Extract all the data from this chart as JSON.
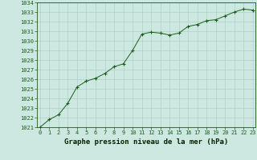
{
  "x": [
    0,
    1,
    2,
    3,
    4,
    5,
    6,
    7,
    8,
    9,
    10,
    11,
    12,
    13,
    14,
    15,
    16,
    17,
    18,
    19,
    20,
    21,
    22,
    23
  ],
  "y": [
    1021.0,
    1021.8,
    1022.3,
    1023.5,
    1025.2,
    1025.8,
    1026.1,
    1026.6,
    1027.3,
    1027.6,
    1029.0,
    1030.7,
    1030.9,
    1030.8,
    1030.6,
    1030.8,
    1031.5,
    1031.7,
    1032.1,
    1032.2,
    1032.6,
    1033.0,
    1033.3,
    1033.2
  ],
  "line_color": "#1a5c1a",
  "marker_color": "#1a5c1a",
  "bg_color": "#cce8e0",
  "grid_color": "#a8ccc4",
  "xlabel": "Graphe pression niveau de la mer (hPa)",
  "xlabel_color": "#002200",
  "ylim": [
    1021,
    1034
  ],
  "xlim": [
    -0.3,
    23.3
  ],
  "yticks": [
    1021,
    1022,
    1023,
    1024,
    1025,
    1026,
    1027,
    1028,
    1029,
    1030,
    1031,
    1032,
    1033,
    1034
  ],
  "xticks": [
    0,
    1,
    2,
    3,
    4,
    5,
    6,
    7,
    8,
    9,
    10,
    11,
    12,
    13,
    14,
    15,
    16,
    17,
    18,
    19,
    20,
    21,
    22,
    23
  ],
  "tick_fontsize": 5.0,
  "xlabel_fontsize": 6.5,
  "axis_color": "#1a5c1a",
  "tick_color": "#1a5c1a",
  "spine_color": "#1a5c1a"
}
